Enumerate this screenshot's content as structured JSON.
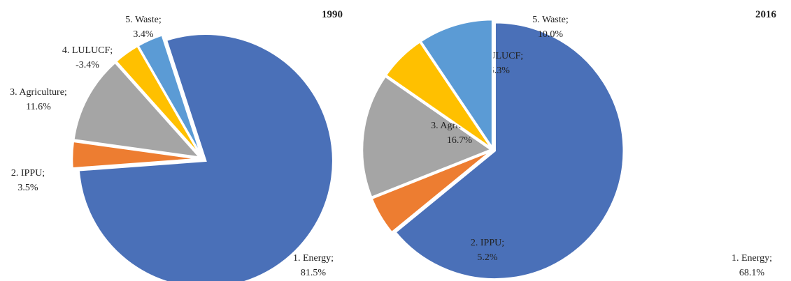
{
  "chart_data": [
    {
      "type": "pie",
      "title": "1990",
      "categories": [
        "1. Energy;",
        "2. IPPU;",
        "3. Agriculture;",
        "4. LULUCF;",
        "5. Waste;"
      ],
      "values": [
        81.5,
        3.5,
        11.6,
        -3.4,
        3.4
      ],
      "value_labels": [
        "81.5%",
        "3.5%",
        "11.6%",
        "-3.4%",
        "3.4%"
      ],
      "colors": [
        "#4a70b8",
        "#ed7d31",
        "#a5a5a5",
        "#ffc000",
        "#5b9bd5"
      ]
    },
    {
      "type": "pie",
      "title": "2016",
      "categories": [
        "1. Energy;",
        "2. IPPU;",
        "3. Agriculture;",
        "4. LULUCF;",
        "5. Waste;"
      ],
      "values": [
        68.1,
        5.2,
        16.7,
        -6.3,
        10.0
      ],
      "value_labels": [
        "68.1%",
        "5.2%",
        "16.7%",
        "-6.3%",
        "10.0%"
      ],
      "colors": [
        "#4a70b8",
        "#ed7d31",
        "#a5a5a5",
        "#ffc000",
        "#5b9bd5"
      ]
    }
  ]
}
